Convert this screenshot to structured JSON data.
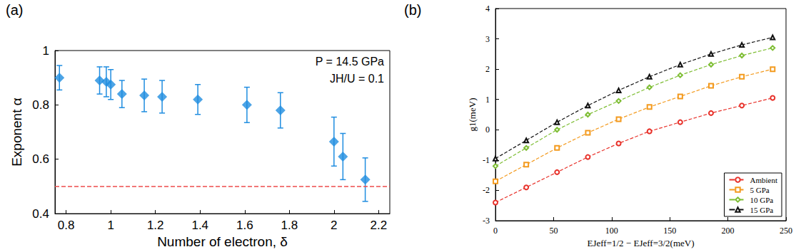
{
  "chart_data": [
    {
      "type": "scatter",
      "title": "(a)",
      "x_label": "Number of electron, δ",
      "y_label": "Exponent α",
      "annotations": [
        "P = 14.5 GPa",
        "JH/U = 0.1"
      ],
      "xlim": [
        0.75,
        2.25
      ],
      "xticks": [
        0.8,
        1,
        1.2,
        1.4,
        1.6,
        1.8,
        2,
        2.2
      ],
      "ylim": [
        0.4,
        1
      ],
      "yticks": [
        0.4,
        0.6,
        0.8,
        1
      ],
      "grid": false,
      "series": [
        {
          "type": "scatter",
          "color": "#1f8de0",
          "marker": "diamond",
          "x": [
            0.77,
            0.95,
            0.98,
            1.0,
            1.05,
            1.15,
            1.23,
            1.39,
            1.61,
            1.76,
            2.0,
            2.04,
            2.14
          ],
          "values": [
            0.9,
            0.89,
            0.885,
            0.875,
            0.84,
            0.835,
            0.83,
            0.82,
            0.8,
            0.78,
            0.665,
            0.61,
            0.525
          ],
          "errors": [
            0.045,
            0.05,
            0.055,
            0.055,
            0.05,
            0.06,
            0.06,
            0.055,
            0.065,
            0.065,
            0.09,
            0.085,
            0.08
          ]
        },
        {
          "type": "hline",
          "color": "#ee4b4b",
          "line_style": "dashed",
          "values": [
            0.5
          ]
        }
      ]
    },
    {
      "type": "line",
      "title": "(b)",
      "x_label": "EJeff=1/2 − EJeff=3/2(meV)",
      "y_label": "g1(meV)",
      "x": [
        0,
        26.5,
        53,
        79.5,
        106,
        132.5,
        159,
        185.5,
        212,
        238.5
      ],
      "xlim": [
        0,
        250
      ],
      "xticks": [
        0,
        50,
        100,
        150,
        200,
        250
      ],
      "ylim": [
        -3,
        4
      ],
      "yticks": [
        -3,
        -2,
        -1,
        0,
        1,
        2,
        3,
        4
      ],
      "grid": false,
      "legend": "lower right",
      "series": [
        {
          "name": "Ambient",
          "color": "#e8322b",
          "marker": "circle",
          "line_style": "dashed",
          "values": [
            -2.4,
            -1.9,
            -1.4,
            -0.9,
            -0.45,
            -0.05,
            0.25,
            0.55,
            0.8,
            1.05
          ]
        },
        {
          "name": "5 GPa",
          "color": "#f39a1e",
          "marker": "square",
          "line_style": "dashed",
          "values": [
            -1.7,
            -1.15,
            -0.6,
            -0.1,
            0.35,
            0.75,
            1.1,
            1.45,
            1.75,
            2.0
          ]
        },
        {
          "name": "10 GPa",
          "color": "#7dbd32",
          "marker": "diamond",
          "line_style": "dashed",
          "values": [
            -1.2,
            -0.6,
            0.0,
            0.5,
            0.95,
            1.4,
            1.8,
            2.15,
            2.45,
            2.7
          ]
        },
        {
          "name": "15 GPa",
          "color": "#111111",
          "marker": "triangle",
          "line_style": "dashed",
          "values": [
            -0.95,
            -0.35,
            0.25,
            0.8,
            1.3,
            1.75,
            2.15,
            2.5,
            2.8,
            3.05
          ]
        }
      ]
    }
  ]
}
